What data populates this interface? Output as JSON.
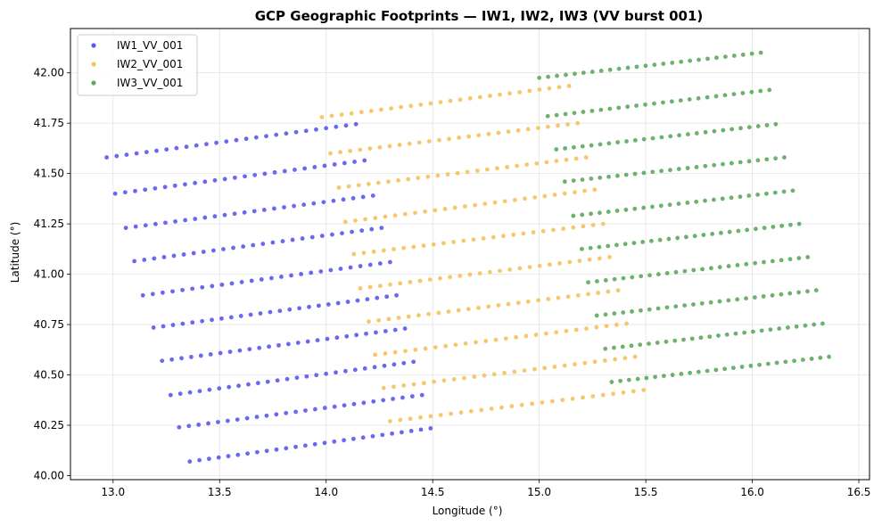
{
  "chart_data": {
    "type": "scatter",
    "title": "GCP Geographic Footprints — IW1, IW2, IW3 (VV burst 001)",
    "xlabel": "Longitude (°)",
    "ylabel": "Latitude (°)",
    "xlim": [
      12.8,
      16.55
    ],
    "ylim": [
      39.98,
      42.22
    ],
    "xticks": [
      13.0,
      13.5,
      14.0,
      14.5,
      15.0,
      15.5,
      16.0,
      16.5
    ],
    "xtick_labels": [
      "13.0",
      "13.5",
      "14.0",
      "14.5",
      "15.0",
      "15.5",
      "16.0",
      "16.5"
    ],
    "yticks": [
      40.0,
      40.25,
      40.5,
      40.75,
      41.0,
      41.25,
      41.5,
      41.75,
      42.0
    ],
    "ytick_labels": [
      "40.00",
      "40.25",
      "40.50",
      "40.75",
      "41.00",
      "41.25",
      "41.50",
      "41.75",
      "42.00"
    ],
    "grid": true,
    "legend_position": "top-left",
    "points_per_row": 26,
    "series": [
      {
        "name": "IW1_VV_001",
        "color": "#5b5bf0",
        "rows": [
          [
            12.97,
            41.58,
            14.14,
            41.745
          ],
          [
            13.01,
            41.4,
            14.18,
            41.565
          ],
          [
            13.06,
            41.23,
            14.22,
            41.39
          ],
          [
            13.1,
            41.065,
            14.26,
            41.23
          ],
          [
            13.14,
            40.895,
            14.3,
            41.06
          ],
          [
            13.19,
            40.735,
            14.33,
            40.895
          ],
          [
            13.23,
            40.57,
            14.37,
            40.73
          ],
          [
            13.27,
            40.4,
            14.41,
            40.565
          ],
          [
            13.31,
            40.24,
            14.45,
            40.4
          ],
          [
            13.36,
            40.07,
            14.49,
            40.235
          ]
        ]
      },
      {
        "name": "IW2_VV_001",
        "color": "#f5c260",
        "rows": [
          [
            13.98,
            41.78,
            15.14,
            41.935
          ],
          [
            14.02,
            41.6,
            15.18,
            41.75
          ],
          [
            14.06,
            41.43,
            15.22,
            41.58
          ],
          [
            14.09,
            41.26,
            15.26,
            41.42
          ],
          [
            14.13,
            41.1,
            15.3,
            41.25
          ],
          [
            14.16,
            40.93,
            15.33,
            41.085
          ],
          [
            14.2,
            40.765,
            15.37,
            40.92
          ],
          [
            14.23,
            40.6,
            15.41,
            40.755
          ],
          [
            14.27,
            40.435,
            15.45,
            40.59
          ],
          [
            14.3,
            40.27,
            15.49,
            40.425
          ]
        ]
      },
      {
        "name": "IW3_VV_001",
        "color": "#5faa5f",
        "rows": [
          [
            15.0,
            41.975,
            16.04,
            42.1
          ],
          [
            15.04,
            41.785,
            16.08,
            41.915
          ],
          [
            15.08,
            41.62,
            16.11,
            41.745
          ],
          [
            15.12,
            41.46,
            16.15,
            41.58
          ],
          [
            15.16,
            41.29,
            16.19,
            41.415
          ],
          [
            15.2,
            41.125,
            16.22,
            41.25
          ],
          [
            15.23,
            40.96,
            16.26,
            41.085
          ],
          [
            15.27,
            40.795,
            16.3,
            40.92
          ],
          [
            15.31,
            40.63,
            16.33,
            40.755
          ],
          [
            15.34,
            40.465,
            16.36,
            40.59
          ]
        ]
      }
    ]
  }
}
